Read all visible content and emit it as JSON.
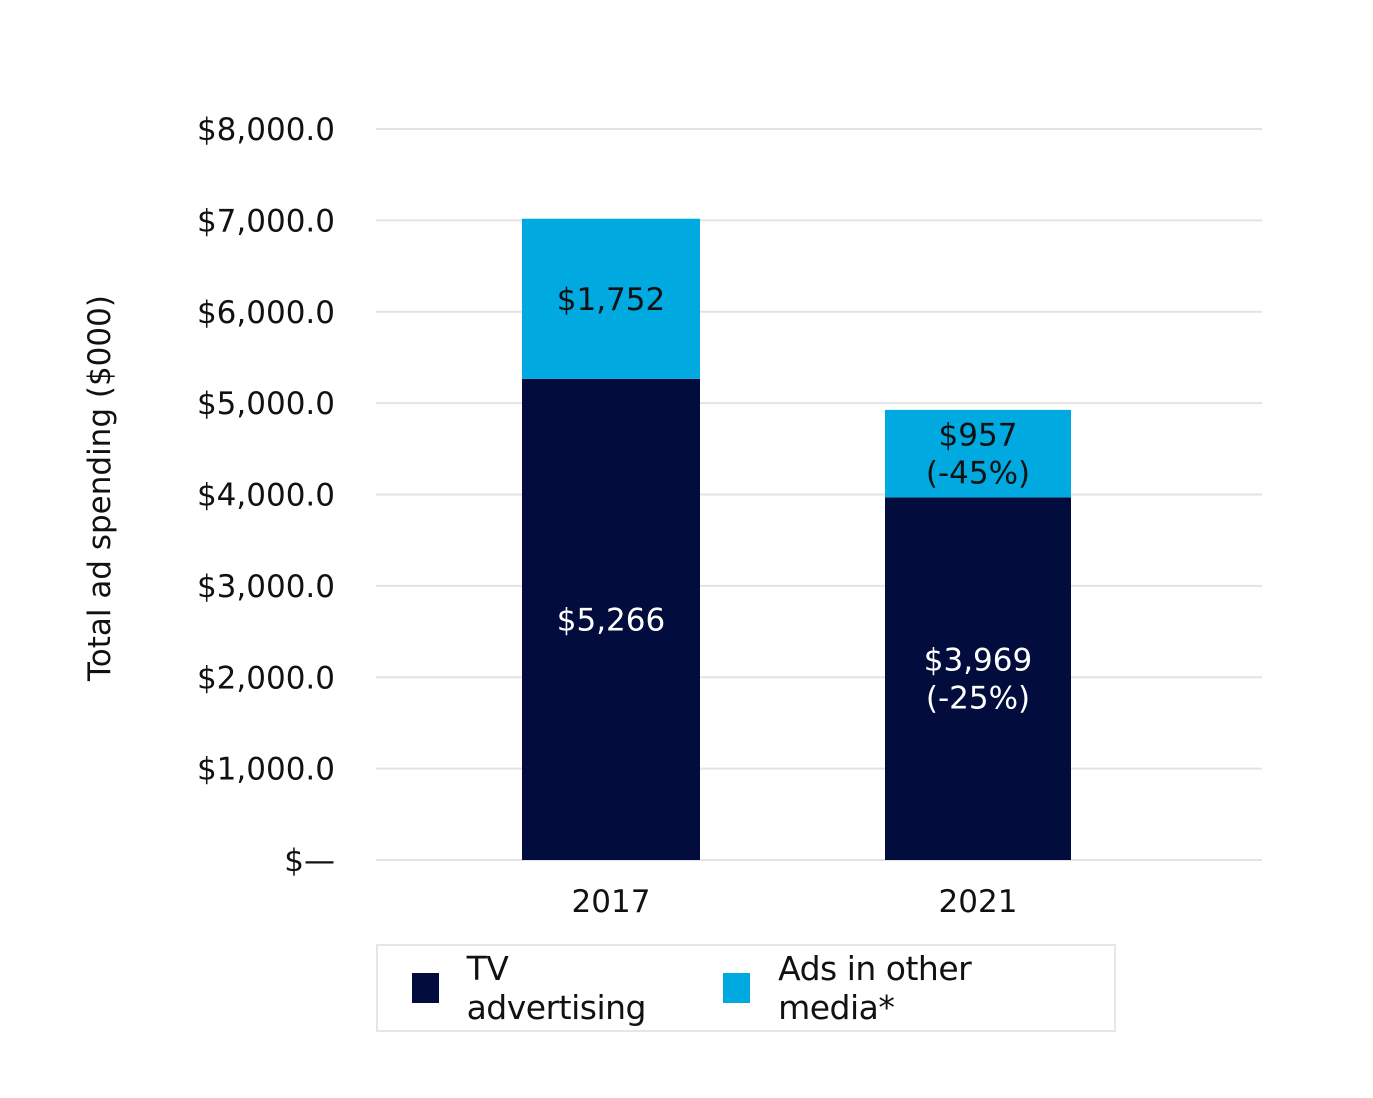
{
  "chart_data": {
    "type": "bar",
    "stacked": true,
    "title": "",
    "xlabel": "",
    "ylabel": "Total ad spending ($000)",
    "ylim": [
      0,
      8000
    ],
    "grid": true,
    "legend_position": "bottom",
    "categories": [
      "2017",
      "2021"
    ],
    "y_ticks": [
      {
        "value": 0,
        "label": "$—"
      },
      {
        "value": 1000,
        "label": "$1,000.0"
      },
      {
        "value": 2000,
        "label": "$2,000.0"
      },
      {
        "value": 3000,
        "label": "$3,000.0"
      },
      {
        "value": 4000,
        "label": "$4,000.0"
      },
      {
        "value": 5000,
        "label": "$5,000.0"
      },
      {
        "value": 6000,
        "label": "$6,000.0"
      },
      {
        "value": 7000,
        "label": "$7,000.0"
      },
      {
        "value": 8000,
        "label": "$8,000.0"
      }
    ],
    "series": [
      {
        "name": "TV advertising",
        "color": "#020d3d",
        "label_color": "#ffffff",
        "values": [
          5266,
          3969
        ],
        "data_labels": [
          [
            "$5,266"
          ],
          [
            "$3,969",
            "(-25%)"
          ]
        ]
      },
      {
        "name": "Ads in other media*",
        "color": "#00a9e0",
        "label_color": "#111111",
        "values": [
          1752,
          957
        ],
        "data_labels": [
          [
            "$1,752"
          ],
          [
            "$957",
            "(-45%)"
          ]
        ]
      }
    ]
  }
}
